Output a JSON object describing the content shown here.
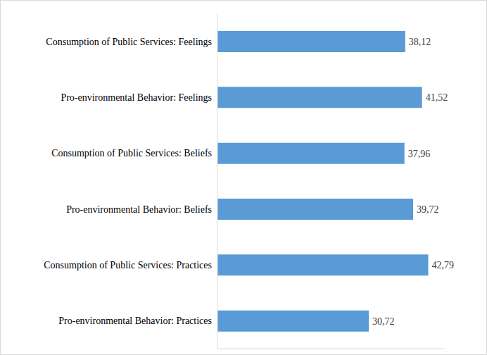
{
  "chart_data": {
    "type": "bar",
    "orientation": "horizontal",
    "categories": [
      "Consumption of Public Services: Feelings",
      "Pro-environmental Behavior: Feelings",
      "Consumption of Public Services: Beliefs",
      "Pro-environmental Behavior: Beliefs",
      "Consumption of Public Services: Practices",
      "Pro-environmental Behavior: Practices"
    ],
    "values": [
      38.12,
      41.52,
      37.96,
      39.72,
      42.79,
      30.72
    ],
    "value_labels": [
      "38,12",
      "41,52",
      "37,96",
      "39,72",
      "42,79",
      "30,72"
    ],
    "color": "#5b9bd5",
    "xlim": [
      0,
      46
    ],
    "data_labels": true,
    "tick_labels": "y",
    "grid": false
  }
}
